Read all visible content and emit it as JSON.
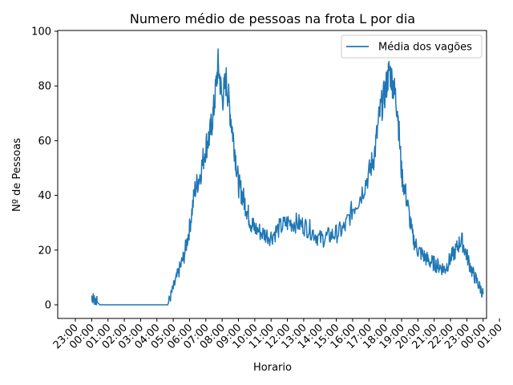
{
  "chart_data": {
    "type": "line",
    "title": "Numero médio de pessoas na frota L por dia",
    "xlabel": "Horario",
    "ylabel": "Nº de Pessoas",
    "ylim": [
      0,
      100
    ],
    "y_ticks": [
      "0",
      "20",
      "40",
      "60",
      "80",
      "100"
    ],
    "x_ticks": [
      "23:00",
      "00:00",
      "01:00",
      "02:00",
      "03:00",
      "04:00",
      "05:00",
      "06:00",
      "07:00",
      "08:00",
      "09:00",
      "10:00",
      "11:00",
      "12:00",
      "13:00",
      "14:00",
      "15:00",
      "16:00",
      "17:00",
      "18:00",
      "19:00",
      "20:00",
      "21:00",
      "22:00",
      "23:00",
      "00:00",
      "01:00"
    ],
    "x_start": "23:00",
    "x_tick_step_hours": 1,
    "grid": false,
    "legend": {
      "position": "top-right"
    },
    "series": [
      {
        "name": "Média dos vagões",
        "color": "#1f77b4",
        "x": [
          "00:00",
          "00:10",
          "00:20",
          "00:30",
          "00:40",
          "01:00",
          "01:30",
          "02:00",
          "02:30",
          "03:00",
          "03:30",
          "04:00",
          "04:30",
          "04:40",
          "05:00",
          "05:20",
          "05:40",
          "06:00",
          "06:20",
          "06:40",
          "07:00",
          "07:15",
          "07:30",
          "07:45",
          "08:00",
          "08:15",
          "08:30",
          "08:45",
          "09:00",
          "09:15",
          "09:30",
          "09:45",
          "10:00",
          "10:30",
          "11:00",
          "11:30",
          "12:00",
          "12:30",
          "13:00",
          "13:30",
          "14:00",
          "14:30",
          "15:00",
          "15:30",
          "16:00",
          "16:30",
          "17:00",
          "17:20",
          "17:40",
          "18:00",
          "18:15",
          "18:30",
          "18:45",
          "19:00",
          "19:20",
          "19:40",
          "20:00",
          "20:20",
          "20:40",
          "21:00",
          "21:20",
          "21:40",
          "22:00",
          "22:20",
          "22:40",
          "23:00",
          "23:20",
          "23:40",
          "00:00"
        ],
        "values": [
          3,
          2,
          1,
          0,
          0,
          0,
          0,
          0,
          0,
          0,
          0,
          0,
          0,
          0,
          6,
          12,
          18,
          28,
          42,
          48,
          58,
          62,
          72,
          88,
          75,
          82,
          70,
          58,
          44,
          40,
          35,
          30,
          28,
          26,
          25,
          28,
          30,
          30,
          29,
          27,
          24,
          25,
          26,
          28,
          35,
          40,
          48,
          55,
          70,
          78,
          86,
          80,
          72,
          48,
          38,
          25,
          20,
          18,
          16,
          15,
          14,
          13,
          17,
          20,
          24,
          18,
          12,
          8,
          4
        ]
      }
    ]
  }
}
